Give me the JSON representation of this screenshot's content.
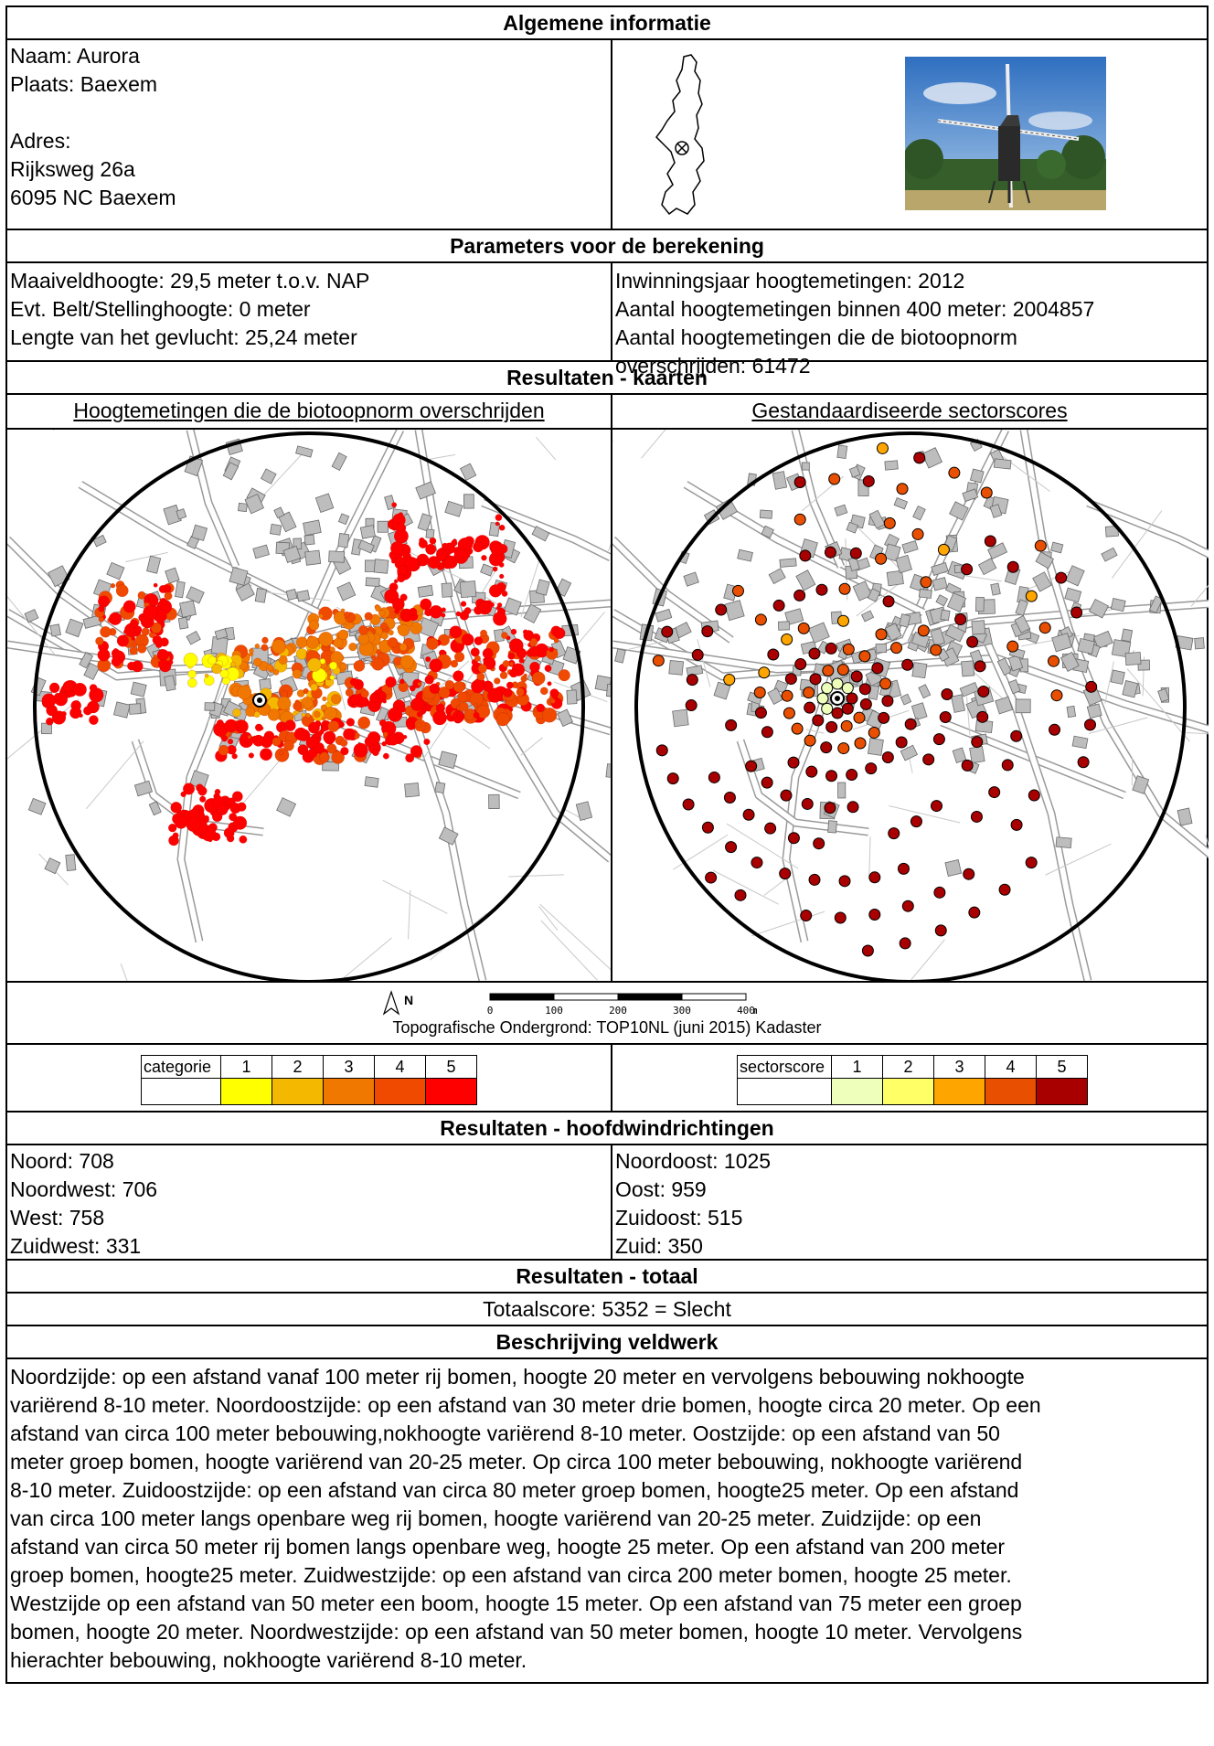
{
  "general": {
    "header": "Algemene informatie",
    "naam": "Naam: Aurora",
    "plaats": "Plaats: Baexem",
    "adres_label": "Adres:",
    "adres_line1": "Rijksweg 26a",
    "adres_line2": "6095 NC Baexem"
  },
  "parameters": {
    "header": "Parameters voor de berekening",
    "left": [
      "Maaiveldhoogte: 29,5 meter t.o.v. NAP",
      "Evt. Belt/Stellinghoogte: 0 meter",
      "Lengte van het gevlucht: 25,24 meter"
    ],
    "right": [
      "Inwinningsjaar hoogtemetingen: 2012",
      "Aantal hoogtemetingen binnen 400 meter: 2004857",
      "Aantal hoogtemetingen die de biotoopnorm",
      "overschrijden: 61472"
    ]
  },
  "maps": {
    "header": "Resultaten - kaarten",
    "left_title": "Hoogtemetingen die de biotoopnorm overschrijden",
    "right_title": "Gestandaardiseerde sectorscores",
    "north_label": "N",
    "scale_ticks": [
      "0",
      "100",
      "200",
      "300",
      "400"
    ],
    "scale_unit": "m",
    "source": "Topografische Ondergrond: TOP10NL (juni 2015) Kadaster"
  },
  "legend_left": {
    "label": "categorie",
    "items": [
      {
        "label": "1",
        "color": "#ffff00"
      },
      {
        "label": "2",
        "color": "#f5b800"
      },
      {
        "label": "3",
        "color": "#f07800"
      },
      {
        "label": "4",
        "color": "#f04a00"
      },
      {
        "label": "5",
        "color": "#ff0000"
      }
    ]
  },
  "legend_right": {
    "label": "sectorscore",
    "items": [
      {
        "label": "1",
        "color": "#eeffbb"
      },
      {
        "label": "2",
        "color": "#ffff66"
      },
      {
        "label": "3",
        "color": "#ffa500"
      },
      {
        "label": "4",
        "color": "#e84f00"
      },
      {
        "label": "5",
        "color": "#a80000"
      }
    ]
  },
  "wind": {
    "header": "Resultaten - hoofdwindrichtingen",
    "left": [
      "Noord: 708",
      "Noordwest: 706",
      "West: 758",
      "Zuidwest: 331"
    ],
    "right": [
      "Noordoost: 1025",
      "Oost: 959",
      "Zuidoost: 515",
      "Zuid: 350"
    ]
  },
  "total": {
    "header": "Resultaten - totaal",
    "score": "Totaalscore: 5352 = Slecht"
  },
  "fieldwork": {
    "header": "Beschrijving veldwerk",
    "lines": [
      "Noordzijde: op een afstand vanaf 100 meter rij bomen, hoogte 20 meter en vervolgens bebouwing nokhoogte",
      "variërend 8-10 meter. Noordoostzijde: op een afstand van 30 meter drie bomen, hoogte circa 20 meter. Op een",
      "afstand van circa 100 meter bebouwing,nokhoogte variërend 8-10 meter. Oostzijde: op een afstand van 50",
      "meter groep bomen, hoogte variërend van 20-25 meter. Op circa 100 meter bebouwing, nokhoogte variërend",
      "8-10 meter. Zuidoostzijde: op een afstand van circa 80 meter groep bomen, hoogte25 meter. Op een afstand",
      "van circa 100 meter langs openbare weg rij bomen, hoogte variërend van 20-25 meter. Zuidzijde: op een",
      "afstand van circa 50 meter rij bomen langs openbare weg, hoogte 25 meter. Op een afstand van 200 meter",
      "groep bomen, hoogte25 meter. Zuidwestzijde: op een afstand van circa 200 meter bomen, hoogte 25 meter.",
      "Westzijde op een afstand van 50 meter een boom, hoogte 15 meter. Op een afstand van 75 meter een groep",
      "bomen, hoogte 20 meter. Noordwestzijde: op een afstand van 50 meter bomen, hoogte 10 meter. Vervolgens",
      "hierachter bebouwing, nokhoogte variërend 8-10 meter."
    ]
  }
}
